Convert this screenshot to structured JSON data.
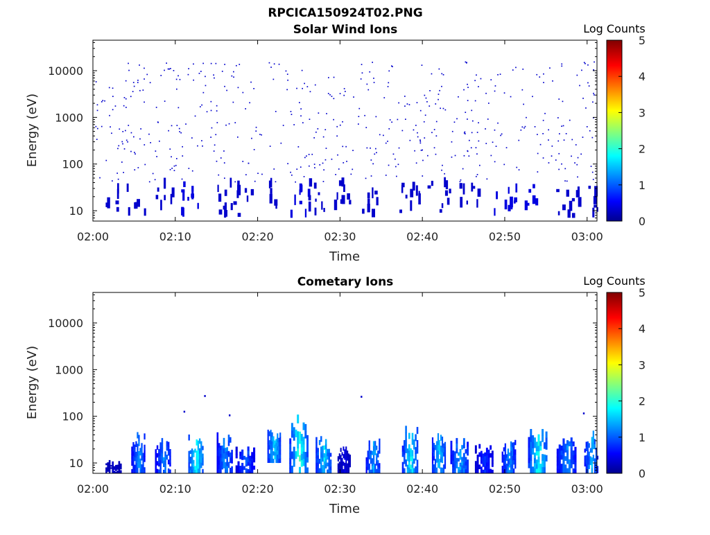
{
  "figure": {
    "title": "RPCICA150924T02.PNG"
  },
  "chart_data": [
    {
      "type": "heatmap",
      "title": "Solar Wind Ions",
      "xlabel": "Time",
      "ylabel": "Energy (eV)",
      "y_scale": "log",
      "x_ticks": [
        "02:00",
        "02:10",
        "02:20",
        "02:30",
        "02:40",
        "02:50",
        "03:00"
      ],
      "y_ticks": [
        "10",
        "100",
        "1000",
        "10000"
      ],
      "xlim": [
        "02:00",
        "03:01"
      ],
      "ylim": [
        6,
        45000
      ],
      "colorbar": {
        "label": "Log Counts",
        "ticks": [
          "0",
          "1",
          "2",
          "3",
          "4",
          "5"
        ],
        "range": [
          0,
          5
        ]
      },
      "colors": {
        "low": "#00008f",
        "mid": "#00ffff",
        "high": "#800000"
      },
      "clusters": [
        {
          "time_min": 2.0,
          "level": 0.3
        },
        {
          "time_min": 5.5,
          "level": 0.3
        },
        {
          "time_min": 9.0,
          "level": 0.3
        },
        {
          "time_min": 12.0,
          "level": 0.4
        },
        {
          "time_min": 15.5,
          "level": 0.3
        },
        {
          "time_min": 18.0,
          "level": 0.3
        },
        {
          "time_min": 21.5,
          "level": 0.3
        },
        {
          "time_min": 25.0,
          "level": 0.4
        },
        {
          "time_min": 27.5,
          "level": 0.3
        },
        {
          "time_min": 30.5,
          "level": 0.3
        },
        {
          "time_min": 34.0,
          "level": 0.3
        },
        {
          "time_min": 38.5,
          "level": 0.3
        },
        {
          "time_min": 42.0,
          "level": 0.3
        },
        {
          "time_min": 45.5,
          "level": 0.3
        },
        {
          "time_min": 50.0,
          "level": 0.4
        },
        {
          "time_min": 53.5,
          "level": 0.4
        },
        {
          "time_min": 57.5,
          "level": 0.3
        },
        {
          "time_min": 60.0,
          "level": 0.3
        }
      ],
      "scatter_energy_range_eV": [
        40,
        15000
      ],
      "scatter_level": 0.3
    },
    {
      "type": "heatmap",
      "title": "Cometary Ions",
      "xlabel": "Time",
      "ylabel": "Energy (eV)",
      "y_scale": "log",
      "x_ticks": [
        "02:00",
        "02:10",
        "02:20",
        "02:30",
        "02:40",
        "02:50",
        "03:00"
      ],
      "y_ticks": [
        "10",
        "100",
        "1000",
        "10000"
      ],
      "xlim": [
        "02:00",
        "03:01"
      ],
      "ylim": [
        6,
        45000
      ],
      "colorbar": {
        "label": "Log Counts",
        "ticks": [
          "0",
          "1",
          "2",
          "3",
          "4",
          "5"
        ],
        "range": [
          0,
          5
        ]
      },
      "colors": {
        "low": "#00008f",
        "mid": "#00ffff",
        "high": "#800000"
      },
      "bursts": [
        {
          "time_min": 2.5,
          "e_low": 6,
          "e_high": 12,
          "level": 0.3
        },
        {
          "time_min": 5.5,
          "e_low": 6,
          "e_high": 55,
          "level": 1.3
        },
        {
          "time_min": 8.5,
          "e_low": 6,
          "e_high": 35,
          "level": 1.2
        },
        {
          "time_min": 12.5,
          "e_low": 6,
          "e_high": 45,
          "level": 2.0
        },
        {
          "time_min": 16.0,
          "e_low": 6,
          "e_high": 45,
          "level": 1.3
        },
        {
          "time_min": 18.5,
          "e_low": 6,
          "e_high": 22,
          "level": 1.0
        },
        {
          "time_min": 22.0,
          "e_low": 10,
          "e_high": 80,
          "level": 1.7
        },
        {
          "time_min": 25.0,
          "e_low": 6,
          "e_high": 120,
          "level": 2.0
        },
        {
          "time_min": 28.0,
          "e_low": 6,
          "e_high": 40,
          "level": 1.7
        },
        {
          "time_min": 30.5,
          "e_low": 6,
          "e_high": 25,
          "level": 0.4
        },
        {
          "time_min": 34.0,
          "e_low": 6,
          "e_high": 40,
          "level": 1.4
        },
        {
          "time_min": 38.5,
          "e_low": 6,
          "e_high": 70,
          "level": 1.8
        },
        {
          "time_min": 42.0,
          "e_low": 6,
          "e_high": 65,
          "level": 1.6
        },
        {
          "time_min": 44.5,
          "e_low": 6,
          "e_high": 35,
          "level": 1.4
        },
        {
          "time_min": 47.5,
          "e_low": 6,
          "e_high": 25,
          "level": 0.8
        },
        {
          "time_min": 50.5,
          "e_low": 6,
          "e_high": 35,
          "level": 1.3
        },
        {
          "time_min": 54.0,
          "e_low": 6,
          "e_high": 55,
          "level": 1.9
        },
        {
          "time_min": 57.5,
          "e_low": 6,
          "e_high": 35,
          "level": 1.3
        },
        {
          "time_min": 60.5,
          "e_low": 6,
          "e_high": 50,
          "level": 1.5
        }
      ],
      "isolated_points": [
        {
          "time_min": 11.0,
          "energy": 120,
          "level": 0.3
        },
        {
          "time_min": 13.5,
          "energy": 260,
          "level": 0.3
        },
        {
          "time_min": 16.5,
          "energy": 100,
          "level": 0.3
        },
        {
          "time_min": 32.5,
          "energy": 250,
          "level": 0.3
        },
        {
          "time_min": 59.5,
          "energy": 110,
          "level": 0.3
        }
      ]
    }
  ]
}
